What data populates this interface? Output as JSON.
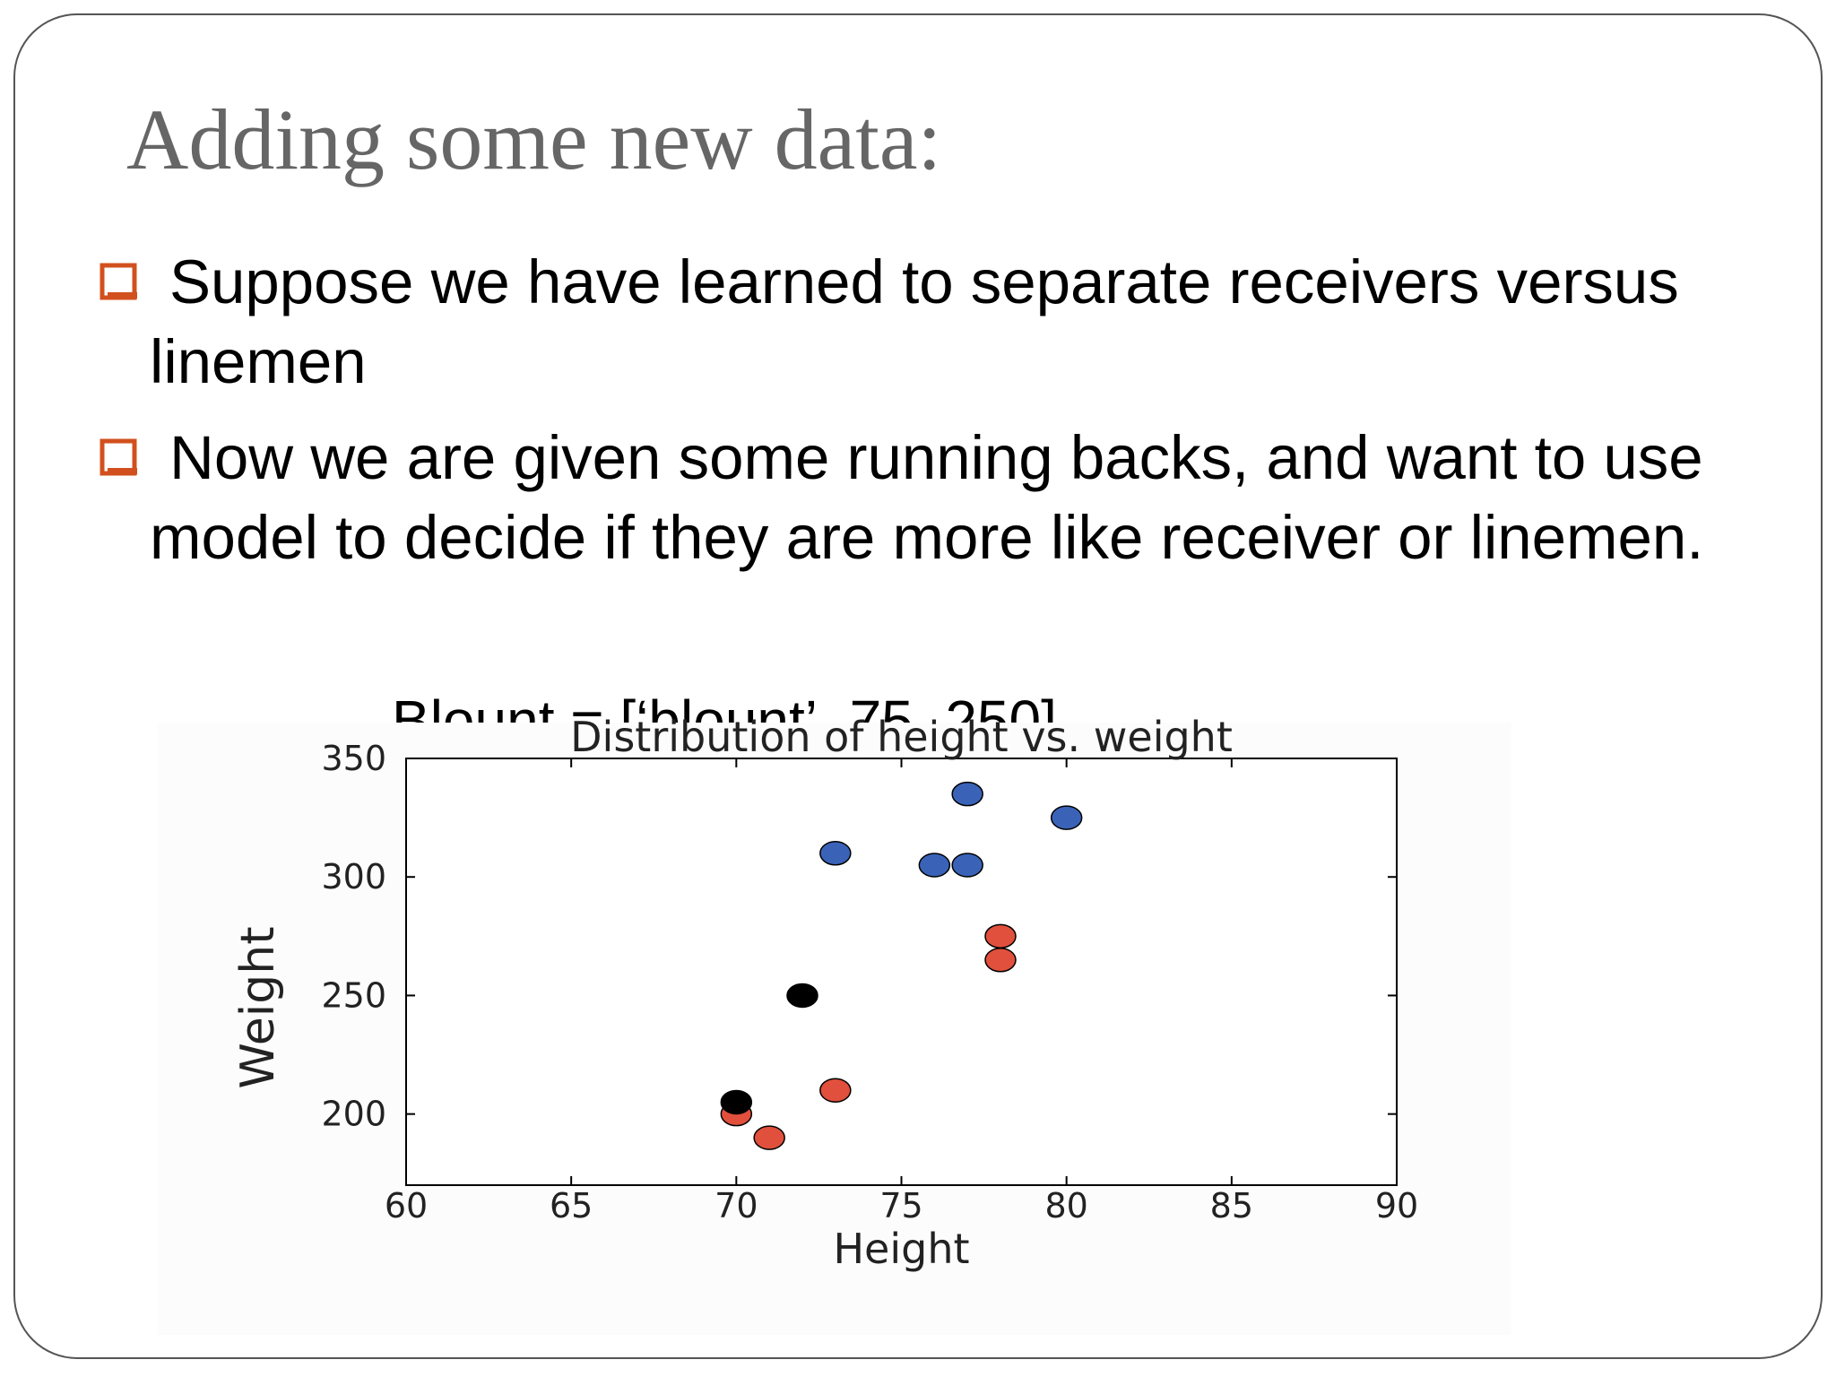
{
  "header": {
    "title": "Adding some new data:"
  },
  "bullets": [
    "Suppose we have learned to separate receivers versus linemen",
    "Now we are given some running backs, and want to use model to decide if they are more like receiver or linemen."
  ],
  "code_line": "Blount = [‘blount’, 75, 250]",
  "chart_data": {
    "type": "scatter",
    "title": "Distribution of height vs. weight",
    "x_label": "Height",
    "y_label": "Weight",
    "xlim": [
      60,
      90
    ],
    "ylim": [
      170,
      350
    ],
    "xticks": [
      60,
      65,
      70,
      75,
      80,
      85,
      90
    ],
    "yticks": [
      200,
      250,
      300,
      350
    ],
    "series": [
      {
        "color": "#3a63b8",
        "x": [
          73,
          76,
          77,
          77,
          80
        ],
        "values": [
          310,
          305,
          305,
          335,
          325
        ]
      },
      {
        "color": "#e0503c",
        "x": [
          78,
          78,
          73,
          70,
          71
        ],
        "values": [
          275,
          265,
          210,
          200,
          190
        ]
      },
      {
        "color": "#000000",
        "x": [
          72,
          70
        ],
        "values": [
          250,
          205
        ]
      }
    ]
  }
}
